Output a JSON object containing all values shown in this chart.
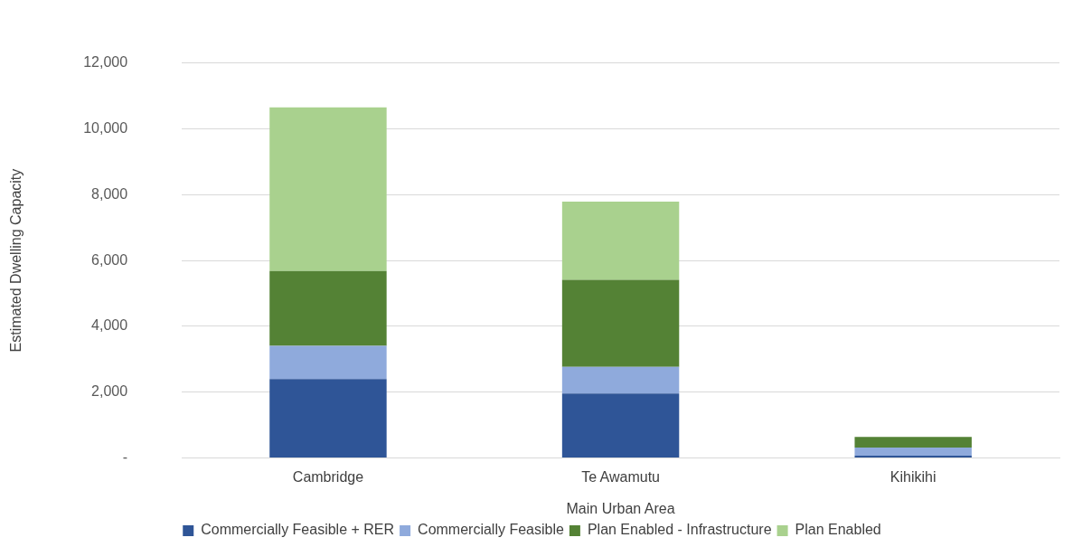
{
  "chart_data": {
    "type": "bar",
    "stacked": true,
    "xlabel": "Main Urban Area",
    "ylabel": "Estimated Dwelling Capacity",
    "categories": [
      "Cambridge",
      "Te Awamutu",
      "Kihikihi"
    ],
    "series": [
      {
        "name": "Commercially Feasible + RER",
        "color": "#2f5597",
        "values": [
          2400,
          1960,
          70
        ]
      },
      {
        "name": "Commercially Feasible",
        "color": "#8faadc",
        "values": [
          1010,
          810,
          250
        ]
      },
      {
        "name": "Plan Enabled - Infrastructure",
        "color": "#548235",
        "values": [
          2270,
          2640,
          320
        ]
      },
      {
        "name": "Plan Enabled",
        "color": "#a9d18e",
        "values": [
          4970,
          2380,
          0
        ]
      }
    ],
    "ylim": [
      0,
      12000
    ],
    "yticks": [
      {
        "value": 0,
        "label": "-"
      },
      {
        "value": 2000,
        "label": "2,000"
      },
      {
        "value": 4000,
        "label": "4,000"
      },
      {
        "value": 6000,
        "label": "6,000"
      },
      {
        "value": 8000,
        "label": "8,000"
      },
      {
        "value": 10000,
        "label": "10,000"
      },
      {
        "value": 12000,
        "label": "12,000"
      }
    ],
    "grid": "y",
    "legend": "bottom"
  }
}
